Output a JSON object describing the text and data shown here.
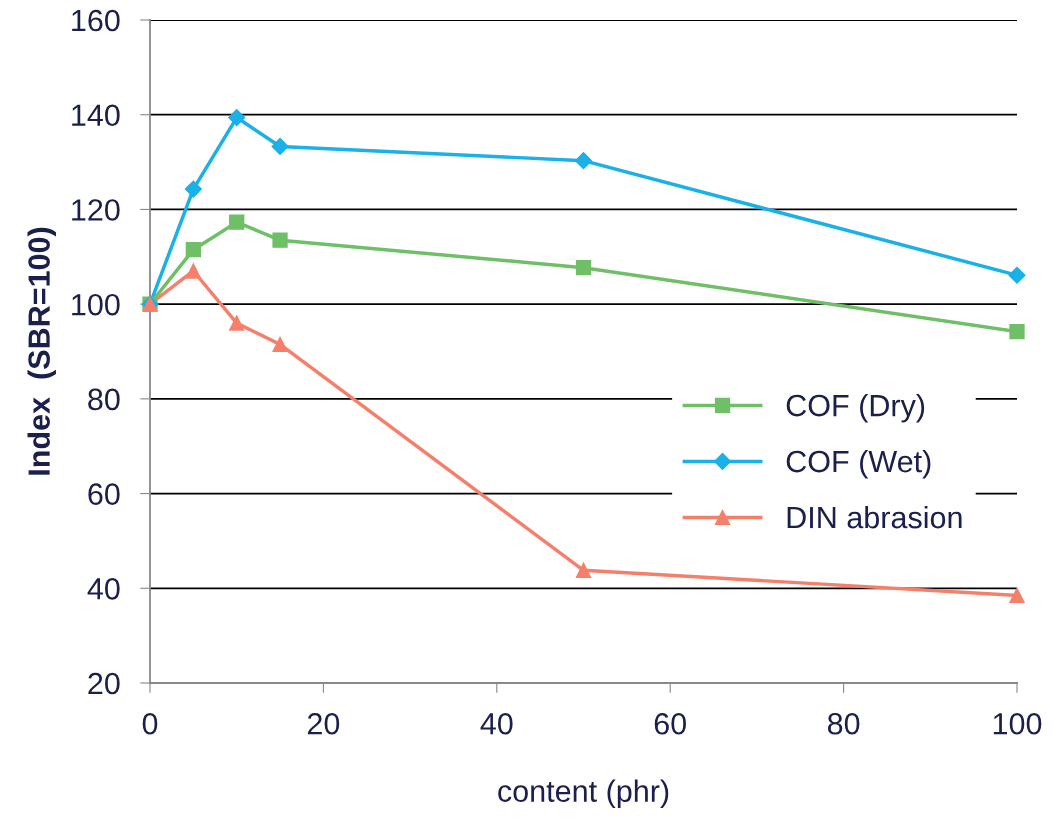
{
  "chart_data": {
    "type": "line",
    "xlabel": "content (phr)",
    "ylabel": "Index  (SBR=100)",
    "x": [
      0,
      5,
      10,
      15,
      50,
      100
    ],
    "series": [
      {
        "name": "COF (Dry)",
        "color": "#6fbf67",
        "marker": "square",
        "values": [
          100,
          111.5,
          117.3,
          113.5,
          107.7,
          94.2
        ]
      },
      {
        "name": "COF (Wet)",
        "color": "#1ab0e8",
        "marker": "diamond",
        "values": [
          100,
          124.3,
          139.4,
          133.3,
          130.3,
          106.1
        ]
      },
      {
        "name": "DIN abrasion",
        "color": "#f4806c",
        "marker": "triangle",
        "values": [
          100,
          107,
          96,
          91.5,
          43.8,
          38.5
        ]
      }
    ],
    "xlim": [
      0,
      100
    ],
    "xticks": [
      0,
      20,
      40,
      60,
      80,
      100
    ],
    "ylim": [
      20,
      160
    ],
    "yticks": [
      20,
      40,
      60,
      80,
      100,
      120,
      140,
      160
    ],
    "grid": "y",
    "legend": "center right"
  }
}
